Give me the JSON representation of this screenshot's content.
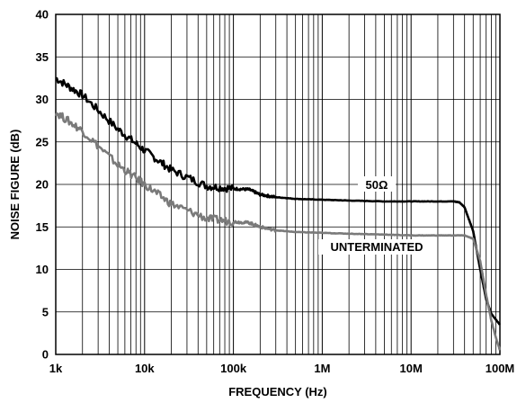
{
  "chart_data": {
    "type": "line",
    "xlabel": "FREQUENCY (Hz)",
    "ylabel": "NOISE FIGURE (dB)",
    "xscale": "log",
    "xlim": [
      1000,
      100000000
    ],
    "ylim": [
      0,
      40
    ],
    "grid": true,
    "x_ticks": [
      {
        "value": 1000,
        "label": "1k"
      },
      {
        "value": 10000,
        "label": "10k"
      },
      {
        "value": 100000,
        "label": "100k"
      },
      {
        "value": 1000000,
        "label": "1M"
      },
      {
        "value": 10000000,
        "label": "10M"
      },
      {
        "value": 100000000,
        "label": "100M"
      }
    ],
    "y_ticks": [
      {
        "value": 0,
        "label": "0"
      },
      {
        "value": 5,
        "label": "5"
      },
      {
        "value": 10,
        "label": "10"
      },
      {
        "value": 15,
        "label": "15"
      },
      {
        "value": 20,
        "label": "20"
      },
      {
        "value": 25,
        "label": "25"
      },
      {
        "value": 30,
        "label": "30"
      },
      {
        "value": 35,
        "label": "35"
      },
      {
        "value": 40,
        "label": "40"
      }
    ],
    "series": [
      {
        "name": "50Ω",
        "color": "#000000",
        "x": [
          1000,
          2000,
          5000,
          10000,
          20000,
          50000,
          100000,
          150000,
          200000,
          300000,
          500000,
          1000000,
          2000000,
          5000000,
          10000000,
          20000000,
          30000000,
          35000000,
          40000000,
          50000000,
          60000000,
          70000000,
          80000000,
          100000000
        ],
        "y": [
          32.5,
          30.5,
          26.5,
          24,
          21.7,
          19.8,
          19.5,
          19.4,
          18.8,
          18.5,
          18.3,
          18.2,
          18.1,
          18,
          18,
          18,
          18,
          17.9,
          17.3,
          14.5,
          10,
          6.5,
          4.8,
          3.5
        ]
      },
      {
        "name": "UNTERMINATED",
        "color": "#7a7a7a",
        "x": [
          1000,
          2000,
          5000,
          10000,
          20000,
          50000,
          100000,
          150000,
          200000,
          300000,
          500000,
          1000000,
          2000000,
          5000000,
          10000000,
          20000000,
          40000000,
          50000000,
          60000000,
          70000000,
          80000000,
          90000000,
          100000000
        ],
        "y": [
          28.5,
          26.3,
          22.3,
          20,
          17.7,
          16,
          15.6,
          15.5,
          15,
          14.6,
          14.4,
          14.3,
          14.2,
          14.1,
          14,
          14,
          14,
          13.6,
          11,
          7,
          4,
          2,
          0.5
        ]
      }
    ]
  }
}
